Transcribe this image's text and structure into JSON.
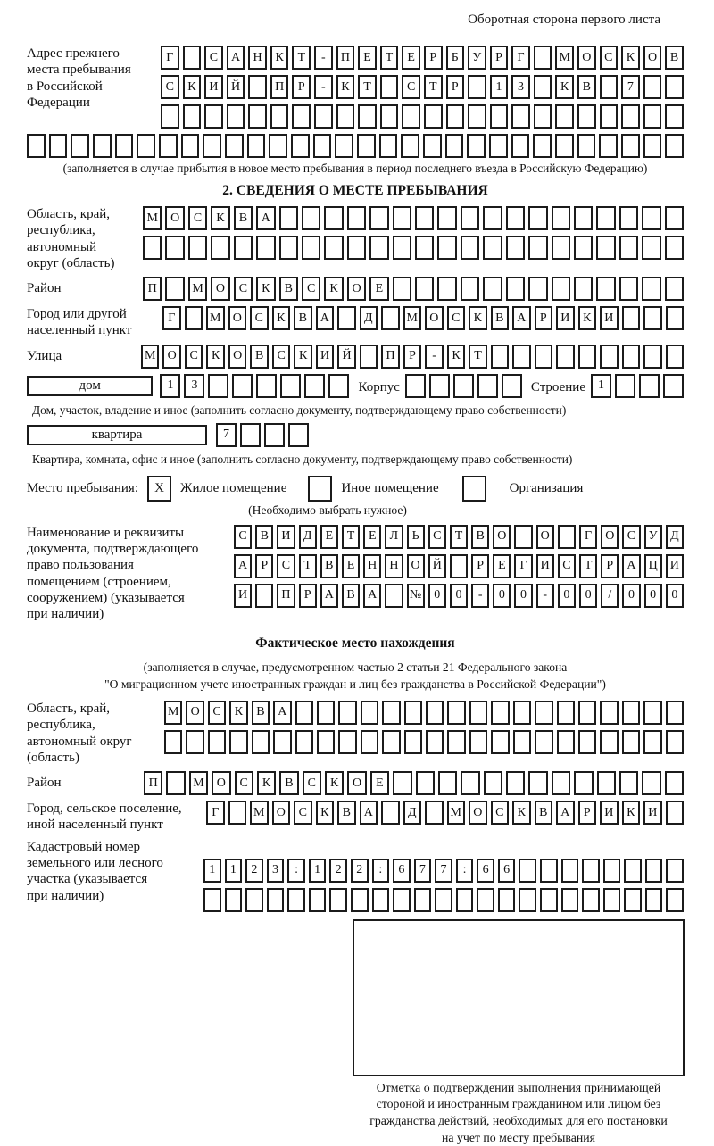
{
  "page": {
    "header_note": "Оборотная сторона первого листа"
  },
  "prev_address": {
    "label_lines": [
      "Адрес прежнего",
      "места пребывания",
      "в Российской",
      "Федерации"
    ],
    "rows": [
      [
        "Г",
        "",
        "С",
        "А",
        "Н",
        "К",
        "Т",
        "-",
        "П",
        "Е",
        "Т",
        "Е",
        "Р",
        "Б",
        "У",
        "Р",
        "Г",
        "",
        "М",
        "О",
        "С",
        "К",
        "О",
        "В"
      ],
      [
        "С",
        "К",
        "И",
        "Й",
        "",
        "П",
        "Р",
        "-",
        "К",
        "Т",
        "",
        "С",
        "Т",
        "Р",
        "",
        "1",
        "3",
        "",
        "К",
        "В",
        "",
        "7",
        "",
        ""
      ],
      [
        "",
        "",
        "",
        "",
        "",
        "",
        "",
        "",
        "",
        "",
        "",
        "",
        "",
        "",
        "",
        "",
        "",
        "",
        "",
        "",
        "",
        "",
        "",
        ""
      ]
    ],
    "full_row": [
      "",
      "",
      "",
      "",
      "",
      "",
      "",
      "",
      "",
      "",
      "",
      "",
      "",
      "",
      "",
      "",
      "",
      "",
      "",
      "",
      "",
      "",
      "",
      "",
      "",
      "",
      "",
      "",
      "",
      ""
    ],
    "caption": "(заполняется в случае прибытия в новое место пребывания в период последнего въезда в Российскую Федерацию)"
  },
  "section2": {
    "title": "2. СВЕДЕНИЯ О МЕСТЕ ПРЕБЫВАНИЯ",
    "region": {
      "label_lines": [
        "Область, край,",
        "республика,",
        "автономный",
        "округ (область)"
      ],
      "rows": [
        [
          "М",
          "О",
          "С",
          "К",
          "В",
          "А",
          "",
          "",
          "",
          "",
          "",
          "",
          "",
          "",
          "",
          "",
          "",
          "",
          "",
          "",
          "",
          "",
          "",
          ""
        ],
        [
          "",
          "",
          "",
          "",
          "",
          "",
          "",
          "",
          "",
          "",
          "",
          "",
          "",
          "",
          "",
          "",
          "",
          "",
          "",
          "",
          "",
          "",
          "",
          ""
        ]
      ]
    },
    "district": {
      "label": "Район",
      "cells": [
        "П",
        "",
        "М",
        "О",
        "С",
        "К",
        "В",
        "С",
        "К",
        "О",
        "Е",
        "",
        "",
        "",
        "",
        "",
        "",
        "",
        "",
        "",
        "",
        "",
        "",
        ""
      ]
    },
    "city": {
      "label_lines": [
        "Город или другой",
        "населенный пункт"
      ],
      "cells": [
        "Г",
        "",
        "М",
        "О",
        "С",
        "К",
        "В",
        "А",
        "",
        "Д",
        "",
        "М",
        "О",
        "С",
        "К",
        "В",
        "А",
        "Р",
        "И",
        "К",
        "И",
        "",
        "",
        ""
      ]
    },
    "street": {
      "label": "Улица",
      "cells": [
        "М",
        "О",
        "С",
        "К",
        "О",
        "В",
        "С",
        "К",
        "И",
        "Й",
        "",
        "П",
        "Р",
        "-",
        "К",
        "Т",
        "",
        "",
        "",
        "",
        "",
        "",
        "",
        "",
        ""
      ]
    },
    "house_row": {
      "house_label": "дом",
      "house_cells": [
        "1",
        "3",
        "",
        "",
        "",
        "",
        "",
        ""
      ],
      "korpus_label": "Корпус",
      "korpus_cells": [
        "",
        "",
        "",
        "",
        ""
      ],
      "stroenie_label": "Строение",
      "stroenie_cells": [
        "1",
        "",
        "",
        ""
      ]
    },
    "house_caption": "Дом, участок, владение и иное (заполнить согласно документу, подтверждающему право собственности)",
    "apartment_row": {
      "label": "квартира",
      "cells": [
        "7",
        "",
        "",
        ""
      ]
    },
    "apartment_caption": "Квартира, комната, офис и иное (заполнить согласно документу, подтверждающему право собственности)",
    "stay_type": {
      "label": "Место пребывания:",
      "options": [
        {
          "label": "Жилое помещение",
          "value": "X"
        },
        {
          "label": "Иное помещение",
          "value": ""
        },
        {
          "label": "Организация",
          "value": ""
        }
      ],
      "note": "(Необходимо выбрать нужное)"
    },
    "doc": {
      "label_lines": [
        "Наименование и реквизиты",
        "документа, подтверждающего",
        "право пользования",
        "помещением (строением,",
        "сооружением) (указывается",
        "при наличии)"
      ],
      "rows": [
        [
          "С",
          "В",
          "И",
          "Д",
          "Е",
          "Т",
          "Е",
          "Л",
          "Ь",
          "С",
          "Т",
          "В",
          "О",
          "",
          "О",
          "",
          "Г",
          "О",
          "С",
          "У",
          "Д"
        ],
        [
          "А",
          "Р",
          "С",
          "Т",
          "В",
          "Е",
          "Н",
          "Н",
          "О",
          "Й",
          "",
          "Р",
          "Е",
          "Г",
          "И",
          "С",
          "Т",
          "Р",
          "А",
          "Ц",
          "И"
        ],
        [
          "И",
          "",
          "П",
          "Р",
          "А",
          "В",
          "А",
          "",
          "№",
          "0",
          "0",
          "-",
          "0",
          "0",
          "-",
          "0",
          "0",
          "/",
          "0",
          "0",
          "0"
        ]
      ]
    }
  },
  "actual_location": {
    "title": "Фактическое место нахождения",
    "caption_lines": [
      "(заполняется в случае, предусмотренном частью 2 статьи 21 Федерального закона",
      "\"О миграционном учете иностранных граждан и лиц без гражданства в Российской Федерации\")"
    ],
    "region": {
      "label_lines": [
        "Область, край,",
        "республика,",
        "автономный округ",
        "(область)"
      ],
      "rows": [
        [
          "М",
          "О",
          "С",
          "К",
          "В",
          "А",
          "",
          "",
          "",
          "",
          "",
          "",
          "",
          "",
          "",
          "",
          "",
          "",
          "",
          "",
          "",
          "",
          "",
          ""
        ],
        [
          "",
          "",
          "",
          "",
          "",
          "",
          "",
          "",
          "",
          "",
          "",
          "",
          "",
          "",
          "",
          "",
          "",
          "",
          "",
          "",
          "",
          "",
          "",
          ""
        ]
      ]
    },
    "district": {
      "label": "Район",
      "cells": [
        "П",
        "",
        "М",
        "О",
        "С",
        "К",
        "В",
        "С",
        "К",
        "О",
        "Е",
        "",
        "",
        "",
        "",
        "",
        "",
        "",
        "",
        "",
        "",
        "",
        "",
        ""
      ]
    },
    "city": {
      "label_lines": [
        "Город, сельское поселение,",
        "иной населенный пункт"
      ],
      "cells": [
        "Г",
        "",
        "М",
        "О",
        "С",
        "К",
        "В",
        "А",
        "",
        "Д",
        "",
        "М",
        "О",
        "С",
        "К",
        "В",
        "А",
        "Р",
        "И",
        "К",
        "И",
        ""
      ]
    },
    "cadastral": {
      "label_lines": [
        "Кадастровый номер",
        "земельного или лесного",
        "участка (указывается",
        "при наличии)"
      ],
      "rows": [
        [
          "1",
          "1",
          "2",
          "3",
          ":",
          "1",
          "2",
          "2",
          ":",
          "6",
          "7",
          "7",
          ":",
          "6",
          "6",
          "",
          "",
          "",
          "",
          "",
          "",
          "",
          ""
        ],
        [
          "",
          "",
          "",
          "",
          "",
          "",
          "",
          "",
          "",
          "",
          "",
          "",
          "",
          "",
          "",
          "",
          "",
          "",
          "",
          "",
          "",
          "",
          ""
        ]
      ]
    }
  },
  "stamp": {
    "caption_lines": [
      "Отметка о подтверждении выполнения принимающей",
      "стороной и иностранным гражданином или лицом без",
      "гражданства действий, необходимых для его постановки",
      "на учет по месту пребывания"
    ]
  }
}
